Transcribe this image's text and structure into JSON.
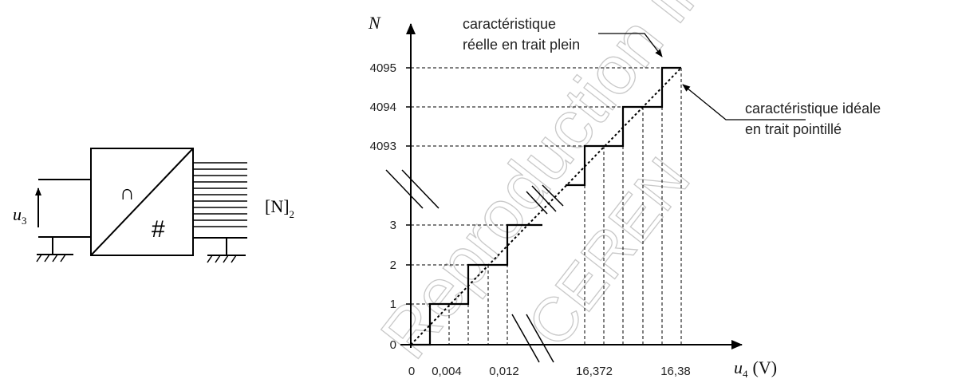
{
  "converter": {
    "input_label": "u",
    "input_sub": "3",
    "analog_symbol": "∩",
    "digital_symbol": "#",
    "output_label": "[N]",
    "output_sub": "2"
  },
  "graph": {
    "y_axis_label": "N",
    "x_axis_label": "u",
    "x_axis_sub": "4",
    "x_axis_unit": "(V)",
    "y_ticks": [
      "0",
      "1",
      "2",
      "3",
      "4093",
      "4094",
      "4095"
    ],
    "x_ticks": [
      "0",
      "0,004",
      "0,012",
      "16,372",
      "16,38"
    ],
    "annotation_real_line1": "caractéristique",
    "annotation_real_line2": "réelle en trait plein",
    "annotation_ideal_line1": "caractéristique idéale",
    "annotation_ideal_line2": "en trait pointillé"
  },
  "watermark": {
    "text_line1": "Reproduction interdite - éditions de l'enseignement p",
    "text_line2": "CEREN"
  },
  "colors": {
    "line": "#000000",
    "text": "#222222",
    "watermark": "#c8c8c8"
  }
}
